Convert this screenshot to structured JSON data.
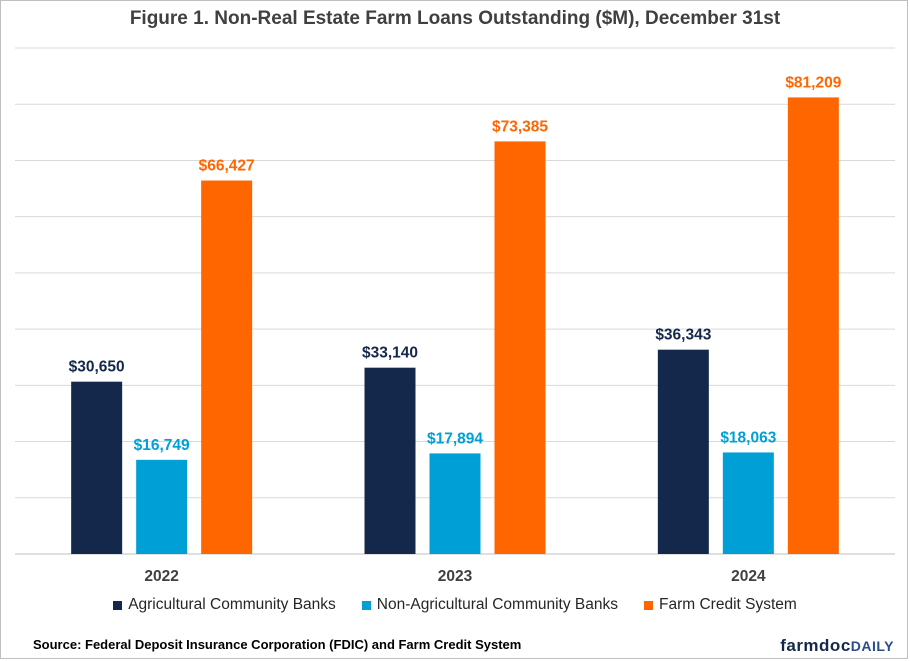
{
  "chart_data": {
    "type": "bar",
    "title": "Figure 1. Non-Real Estate Farm Loans Outstanding ($M), December 31st",
    "categories": [
      "2022",
      "2023",
      "2024"
    ],
    "series": [
      {
        "name": "Agricultural Community Banks",
        "values": [
          30650,
          33140,
          36343
        ],
        "labels": [
          "$30,650",
          "$33,140",
          "$36,343"
        ],
        "color": "#14284b"
      },
      {
        "name": "Non-Agricultural Community Banks",
        "values": [
          16749,
          17894,
          18063
        ],
        "labels": [
          "$16,749",
          "$17,894",
          "$18,063"
        ],
        "color": "#00a0d6"
      },
      {
        "name": "Farm Credit System",
        "values": [
          66427,
          73385,
          81209
        ],
        "labels": [
          "$66,427",
          "$73,385",
          "$81,209"
        ],
        "color": "#ff6600"
      }
    ],
    "ylim": [
      0,
      90000
    ],
    "grid": true,
    "y_tick_labels_visible": false,
    "legend_position": "bottom"
  },
  "source": "Source: Federal Deposit Insurance Corporation (FDIC) and Farm Credit System",
  "logo": {
    "part1": "farmdoc",
    "part2": "DAILY"
  },
  "colors": {
    "gridline": "#d9d9d9",
    "axis": "#bfbfbf"
  }
}
